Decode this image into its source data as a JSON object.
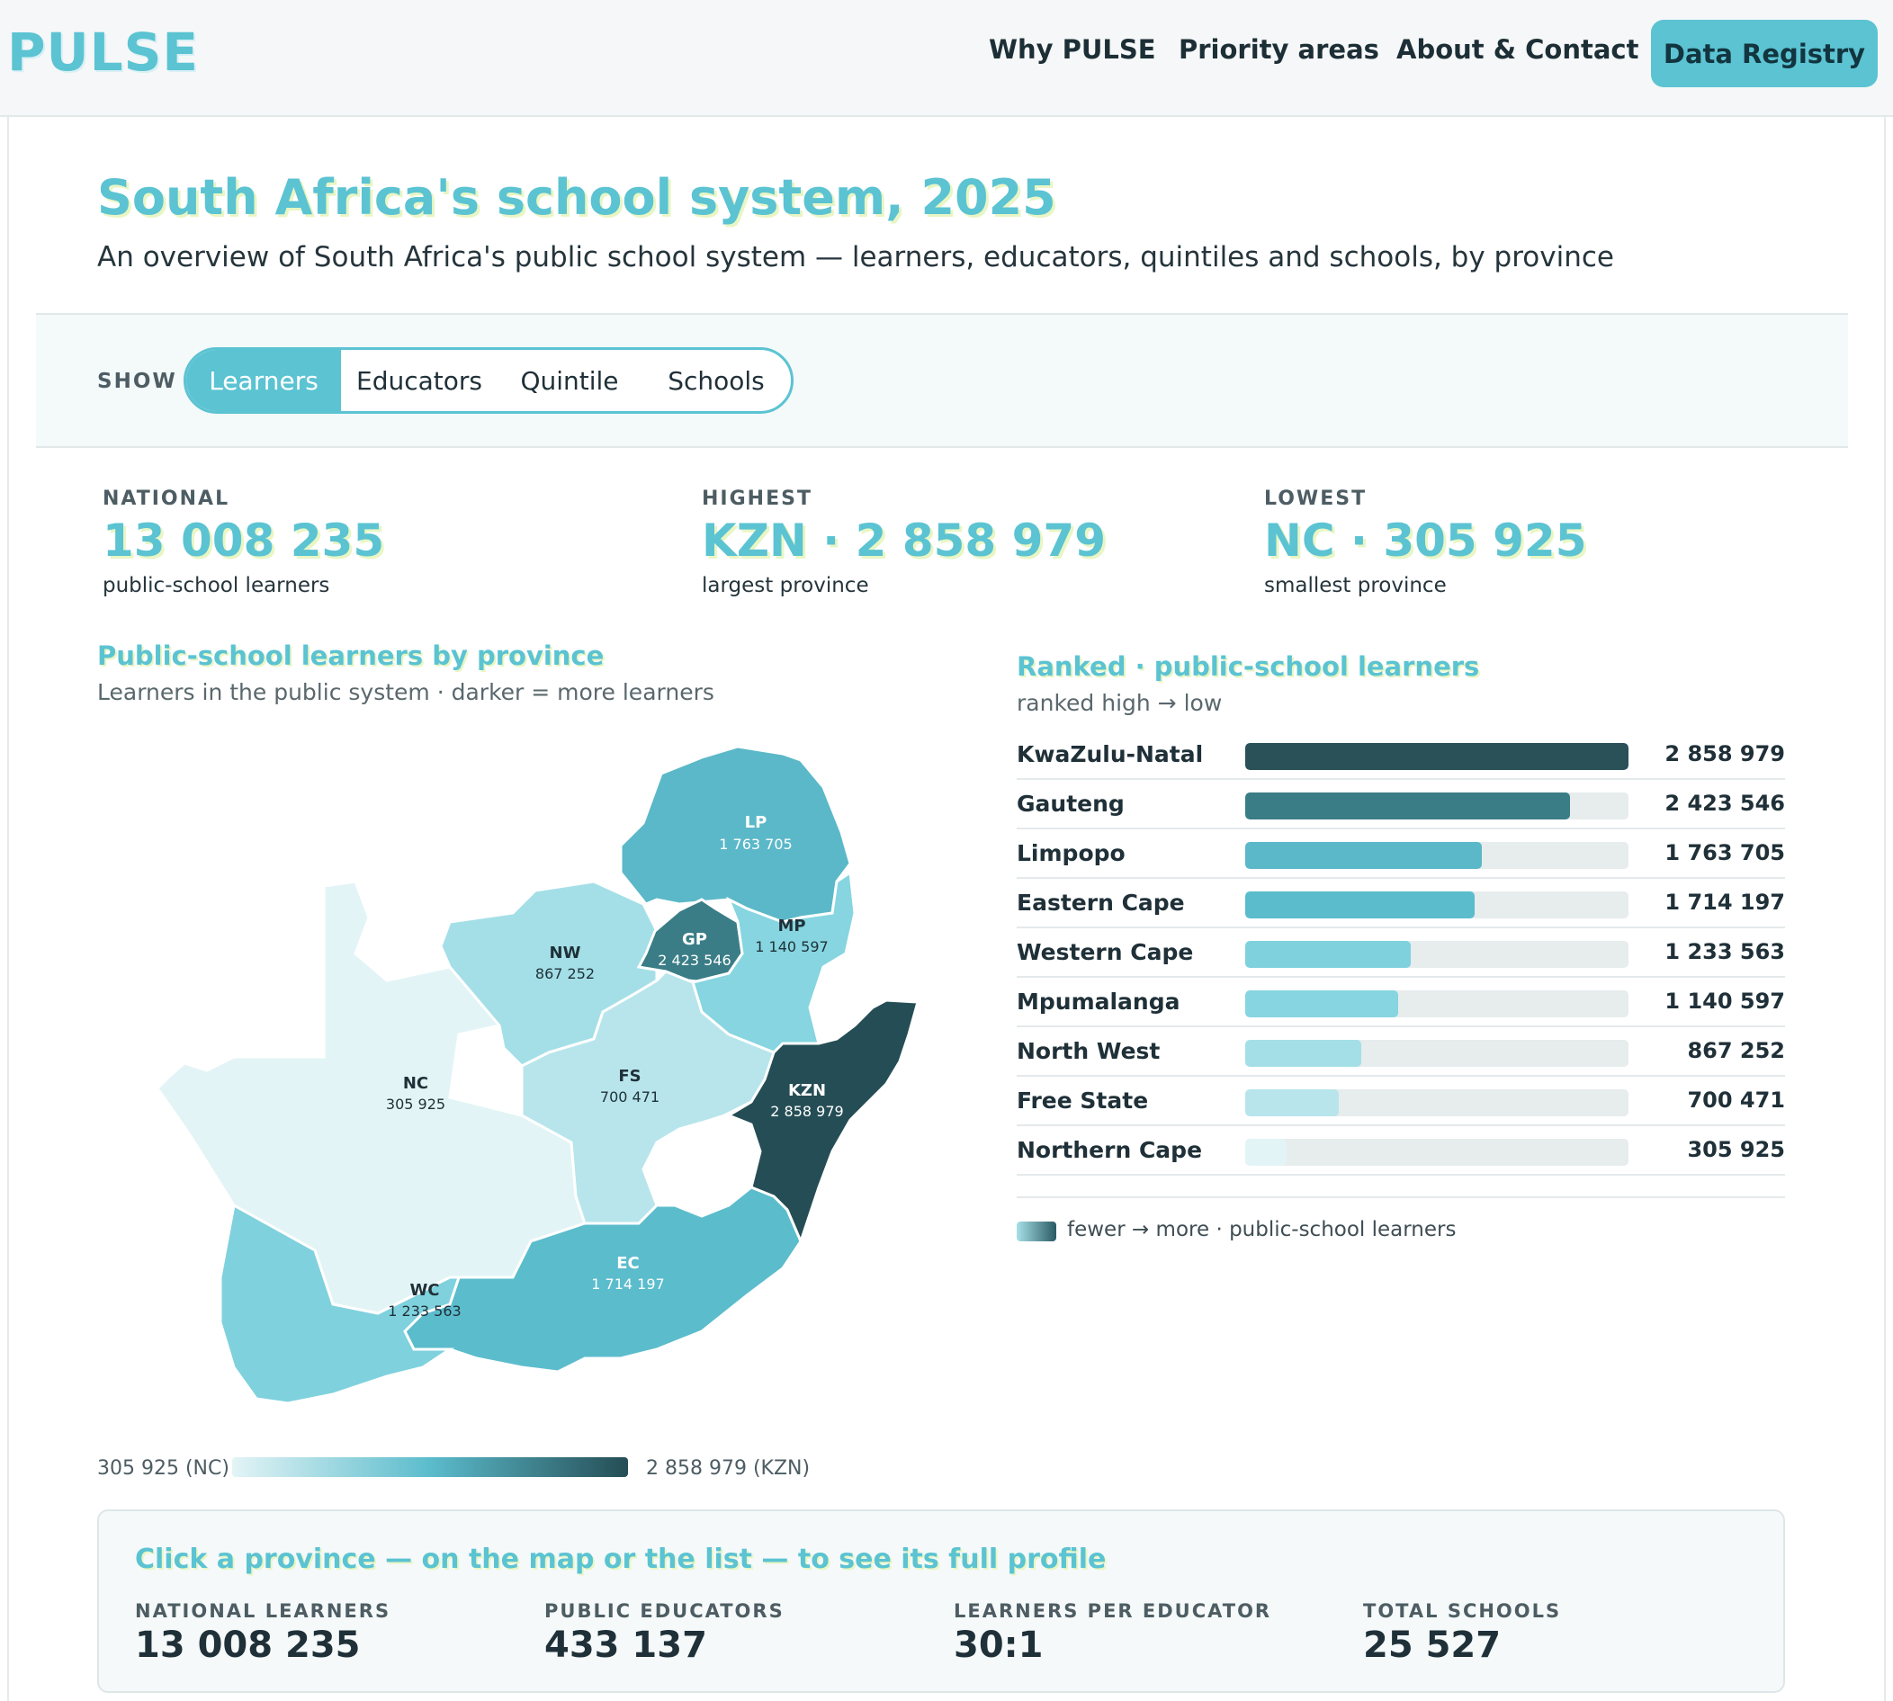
{
  "header": {
    "logo": "PULSE",
    "nav": [
      "Why PULSE",
      "Priority areas",
      "About & Contact"
    ],
    "cta": "Data Registry"
  },
  "page": {
    "title": "South Africa's school system, 2025",
    "subtitle": "An overview of South Africa's public school system — learners, educators, quintiles and schools, by province"
  },
  "filter": {
    "label": "SHOW",
    "options": [
      "Learners",
      "Educators",
      "Quintile",
      "Schools"
    ],
    "selected": "Learners"
  },
  "kpis": [
    {
      "label": "NATIONAL",
      "value": "13 008 235",
      "note": "public-school learners"
    },
    {
      "label": "HIGHEST",
      "value": "KZN · 2 858 979",
      "note": "largest province"
    },
    {
      "label": "LOWEST",
      "value": "NC · 305 925",
      "note": "smallest province"
    }
  ],
  "map": {
    "title": "Public-school learners by province",
    "subtitle": "Learners in the public system · darker = more learners",
    "legend_min": "305 925 (NC)",
    "legend_max": "2 858 979 (KZN)",
    "provinces": [
      {
        "code": "LP",
        "value": "1 763 705",
        "fill": "#5bb8c8",
        "text": "#ffffff"
      },
      {
        "code": "GP",
        "value": "2 423 546",
        "fill": "#3a7d86",
        "text": "#ffffff"
      },
      {
        "code": "MP",
        "value": "1 140 597",
        "fill": "#86d5e0",
        "text": "#1f3038"
      },
      {
        "code": "NW",
        "value": "867 252",
        "fill": "#a4dfe7",
        "text": "#1f3038"
      },
      {
        "code": "NC",
        "value": "305 925",
        "fill": "#e3f4f6",
        "text": "#1f3038"
      },
      {
        "code": "FS",
        "value": "700 471",
        "fill": "#b7e5eb",
        "text": "#1f3038"
      },
      {
        "code": "KZN",
        "value": "2 858 979",
        "fill": "#254d55",
        "text": "#ffffff"
      },
      {
        "code": "EC",
        "value": "1 714 197",
        "fill": "#5bbccc",
        "text": "#ffffff"
      },
      {
        "code": "WC",
        "value": "1 233 563",
        "fill": "#7fd1dd",
        "text": "#1f3038"
      }
    ]
  },
  "ranked": {
    "title": "Ranked · public-school learners",
    "subtitle": "ranked high → low",
    "scale_text": "fewer → more · public-school learners",
    "rows": [
      {
        "name": "KwaZulu-Natal",
        "value": "2 858 979",
        "amount": 2858979,
        "fill": "#2a5058"
      },
      {
        "name": "Gauteng",
        "value": "2 423 546",
        "amount": 2423546,
        "fill": "#3a7d86"
      },
      {
        "name": "Limpopo",
        "value": "1 763 705",
        "amount": 1763705,
        "fill": "#5bb8c8"
      },
      {
        "name": "Eastern Cape",
        "value": "1 714 197",
        "amount": 1714197,
        "fill": "#5bbccc"
      },
      {
        "name": "Western Cape",
        "value": "1 233 563",
        "amount": 1233563,
        "fill": "#7fd1dd"
      },
      {
        "name": "Mpumalanga",
        "value": "1 140 597",
        "amount": 1140597,
        "fill": "#86d5e0"
      },
      {
        "name": "North West",
        "value": "867 252",
        "amount": 867252,
        "fill": "#a4dfe7"
      },
      {
        "name": "Free State",
        "value": "700 471",
        "amount": 700471,
        "fill": "#b7e5eb"
      },
      {
        "name": "Northern Cape",
        "value": "305 925",
        "amount": 305925,
        "fill": "#e3f4f6"
      }
    ]
  },
  "panel": {
    "title": "Click a province — on the map or the list — to see its full profile",
    "stats": [
      {
        "label": "NATIONAL LEARNERS",
        "value": "13 008 235"
      },
      {
        "label": "PUBLIC EDUCATORS",
        "value": "433 137"
      },
      {
        "label": "LEARNERS PER EDUCATOR",
        "value": "30:1"
      },
      {
        "label": "TOTAL SCHOOLS",
        "value": "25 527"
      }
    ]
  }
}
